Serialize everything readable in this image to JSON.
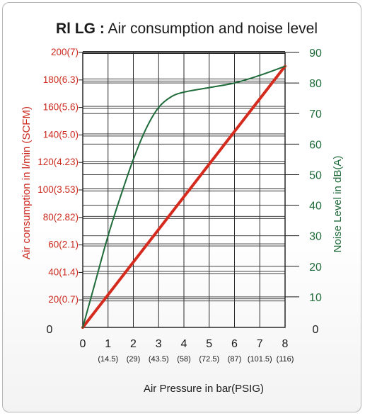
{
  "chart_data": {
    "type": "line",
    "title_bold": "Rl LG :",
    "title_rest": " Air consumption and noise level",
    "xlabel": "Air  Pressure in bar(PSIG)",
    "ylabel_left": "Air  consumption in l/min (SCFM)",
    "ylabel_right": "Noise Level in dB(A)",
    "xlim": [
      0,
      8
    ],
    "ylim_left": [
      0,
      200
    ],
    "ylim_right": [
      0,
      90
    ],
    "x_ticks": [
      "0",
      "1",
      "2",
      "3",
      "4",
      "5",
      "6",
      "7",
      "8"
    ],
    "x_sub_ticks": [
      "(14.5)",
      "(29)",
      "(43.5)",
      "(58)",
      "(72.5)",
      "(87)",
      "(101.5)",
      "(116)"
    ],
    "left_ticks": [
      {
        "value": 0,
        "label": "0"
      },
      {
        "value": 20,
        "label": "20(0.7)"
      },
      {
        "value": 40,
        "label": "40(1.4)"
      },
      {
        "value": 60,
        "label": "60(2.1)"
      },
      {
        "value": 80,
        "label": "80(2.82)"
      },
      {
        "value": 100,
        "label": "100(3.53)"
      },
      {
        "value": 120,
        "label": "120(4.23)"
      },
      {
        "value": 140,
        "label": "140(5.0)"
      },
      {
        "value": 160,
        "label": "160(5.6)"
      },
      {
        "value": 180,
        "label": "180(6.3)"
      },
      {
        "value": 200,
        "label": "200(7)"
      }
    ],
    "right_ticks": [
      {
        "value": 0,
        "label": "0"
      },
      {
        "value": 10,
        "label": "10"
      },
      {
        "value": 20,
        "label": "20"
      },
      {
        "value": 30,
        "label": "30"
      },
      {
        "value": 40,
        "label": "40"
      },
      {
        "value": 50,
        "label": "50"
      },
      {
        "value": 60,
        "label": "60"
      },
      {
        "value": 70,
        "label": "70"
      },
      {
        "value": 80,
        "label": "80"
      },
      {
        "value": 90,
        "label": "90"
      }
    ],
    "grid": true,
    "series": [
      {
        "axis": "left",
        "color": "#d42b1e",
        "x": [
          0,
          8
        ],
        "y": [
          0,
          190
        ]
      },
      {
        "axis": "right",
        "color": "#1f6b3a",
        "x": [
          0,
          0.5,
          1,
          1.5,
          2,
          2.5,
          3,
          3.5,
          4,
          5,
          6,
          7,
          8
        ],
        "y": [
          0,
          15,
          30,
          43,
          55,
          65,
          72,
          75.5,
          77,
          78.5,
          80,
          82.5,
          85.5
        ]
      }
    ]
  }
}
